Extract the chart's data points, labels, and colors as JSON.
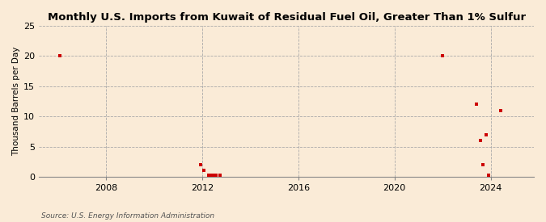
{
  "title": "Monthly U.S. Imports from Kuwait of Residual Fuel Oil, Greater Than 1% Sulfur",
  "ylabel": "Thousand Barrels per Day",
  "source": "Source: U.S. Energy Information Administration",
  "background_color": "#faebd7",
  "plot_bg_color": "#faebd7",
  "scatter_color": "#cc0000",
  "xlim_left": 2005.2,
  "xlim_right": 2025.8,
  "ylim": [
    0,
    25
  ],
  "yticks": [
    0,
    5,
    10,
    15,
    20,
    25
  ],
  "xticks": [
    2008,
    2012,
    2016,
    2020,
    2024
  ],
  "data_x": [
    2006.08,
    2011.92,
    2011.92,
    2012.08,
    2012.25,
    2012.33,
    2012.42,
    2012.5,
    2012.58,
    2012.75,
    2022.0,
    2023.42,
    2023.58,
    2023.67,
    2023.83,
    2023.92,
    2024.42
  ],
  "data_y": [
    20,
    2,
    2,
    1,
    0.3,
    0.3,
    0.2,
    0.2,
    0.2,
    0.2,
    20,
    12,
    6,
    2,
    7,
    0.2,
    11
  ]
}
